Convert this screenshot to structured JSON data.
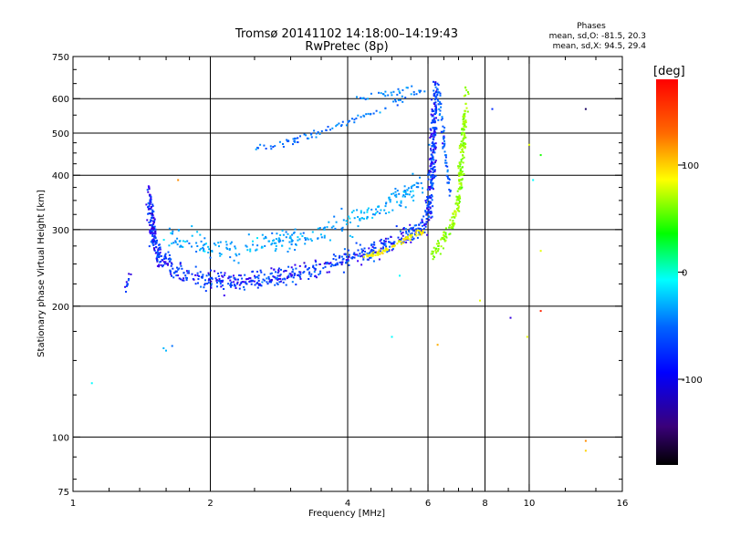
{
  "header": {
    "title": "Tromsø 20141102 14:18:00–14:19:43",
    "subtitle": "RwPretec (8p)"
  },
  "stats": {
    "heading": "Phases",
    "line_o": "mean, sd,O: -81.5, 20.3",
    "line_x": "mean, sd,X:  94.5, 29.4"
  },
  "colorbar": {
    "label": "[deg]",
    "range": [
      -180,
      180
    ],
    "ticks": [
      {
        "value": 100,
        "label": "100"
      },
      {
        "value": 0,
        "label": "0"
      },
      {
        "value": -100,
        "label": "-100"
      }
    ]
  },
  "chart_data": {
    "type": "scatter",
    "title": "Tromsø 20141102 14:18:00–14:19:43",
    "subtitle": "RwPretec (8p)",
    "xlabel": "Frequency [MHz]",
    "ylabel": "Stationary phase Virtual Height [km]",
    "x_scale": "log",
    "y_scale": "log",
    "xlim": [
      1,
      16
    ],
    "ylim": [
      75,
      750
    ],
    "x_ticks": [
      {
        "value": 1,
        "label": "1"
      },
      {
        "value": 2,
        "label": "2"
      },
      {
        "value": 4,
        "label": "4"
      },
      {
        "value": 6,
        "label": "6"
      },
      {
        "value": 8,
        "label": "8"
      },
      {
        "value": 10,
        "label": "10"
      },
      {
        "value": 16,
        "label": "16"
      }
    ],
    "y_ticks": [
      {
        "value": 75,
        "label": "75"
      },
      {
        "value": 100,
        "label": "100"
      },
      {
        "value": 200,
        "label": "200"
      },
      {
        "value": 300,
        "label": "300"
      },
      {
        "value": 400,
        "label": "400"
      },
      {
        "value": 500,
        "label": "500"
      },
      {
        "value": 600,
        "label": "600"
      },
      {
        "value": 750,
        "label": "750"
      }
    ],
    "x_grid": [
      2,
      4,
      6,
      8,
      10
    ],
    "y_grid": [
      100,
      200,
      300,
      400,
      500,
      600
    ],
    "color_variable": "phase [deg]",
    "clusters": [
      {
        "kind": "curve",
        "points": [
          [
            1.47,
            340
          ],
          [
            1.5,
            285
          ],
          [
            1.55,
            260
          ],
          [
            1.65,
            245
          ],
          [
            1.8,
            235
          ],
          [
            2.0,
            228
          ],
          [
            2.3,
            228
          ],
          [
            2.7,
            232
          ],
          [
            3.2,
            240
          ],
          [
            3.7,
            250
          ],
          [
            4.2,
            262
          ],
          [
            4.8,
            275
          ],
          [
            5.3,
            288
          ],
          [
            5.8,
            300
          ],
          [
            6.0,
            320
          ],
          [
            6.1,
            380
          ],
          [
            6.15,
            460
          ],
          [
            6.2,
            560
          ],
          [
            6.25,
            640
          ]
        ],
        "phase": -95,
        "spread": 0.05,
        "count": 900
      },
      {
        "kind": "curve",
        "points": [
          [
            1.6,
            290
          ],
          [
            1.9,
            275
          ],
          [
            2.3,
            272
          ],
          [
            2.8,
            282
          ],
          [
            3.3,
            292
          ],
          [
            3.8,
            305
          ],
          [
            4.3,
            320
          ],
          [
            4.8,
            340
          ],
          [
            5.3,
            360
          ],
          [
            5.8,
            385
          ]
        ],
        "phase": -65,
        "spread": 0.06,
        "count": 280
      },
      {
        "kind": "curve",
        "points": [
          [
            1.47,
            375
          ],
          [
            1.5,
            310
          ],
          [
            1.52,
            270
          ],
          [
            1.55,
            250
          ]
        ],
        "phase": -100,
        "spread": 0.03,
        "count": 60
      },
      {
        "kind": "curve",
        "points": [
          [
            4.3,
            258
          ],
          [
            4.8,
            268
          ],
          [
            5.2,
            280
          ],
          [
            5.6,
            292
          ],
          [
            5.9,
            300
          ]
        ],
        "phase": 110,
        "spread": 0.015,
        "count": 80
      },
      {
        "kind": "curve",
        "points": [
          [
            6.1,
            260
          ],
          [
            6.4,
            280
          ],
          [
            6.8,
            310
          ],
          [
            7.0,
            350
          ],
          [
            7.1,
            420
          ],
          [
            7.2,
            520
          ],
          [
            7.3,
            630
          ]
        ],
        "phase": 75,
        "spread": 0.035,
        "count": 230
      },
      {
        "kind": "curve",
        "points": [
          [
            6.3,
            640
          ],
          [
            6.4,
            560
          ],
          [
            6.5,
            480
          ],
          [
            6.6,
            420
          ],
          [
            6.7,
            360
          ]
        ],
        "phase": -85,
        "spread": 0.025,
        "count": 60
      },
      {
        "kind": "curve",
        "points": [
          [
            2.5,
            460
          ],
          [
            3.0,
            478
          ],
          [
            3.5,
            505
          ],
          [
            4.0,
            528
          ],
          [
            4.5,
            555
          ],
          [
            5.0,
            582
          ],
          [
            5.5,
            610
          ],
          [
            5.9,
            632
          ]
        ],
        "phase": -80,
        "spread": 0.02,
        "count": 90
      },
      {
        "kind": "curve",
        "points": [
          [
            4.2,
            600
          ],
          [
            5.0,
            620
          ],
          [
            5.5,
            640
          ]
        ],
        "phase": -75,
        "spread": 0.02,
        "count": 25
      },
      {
        "kind": "curve",
        "points": [
          [
            1.3,
            215
          ],
          [
            1.32,
            228
          ],
          [
            1.34,
            240
          ]
        ],
        "phase": -95,
        "spread": 0.02,
        "count": 12
      }
    ],
    "isolated_points": [
      {
        "x": 1.1,
        "y": 133,
        "phase": -40
      },
      {
        "x": 1.58,
        "y": 160,
        "phase": -60
      },
      {
        "x": 1.6,
        "y": 158,
        "phase": -60
      },
      {
        "x": 1.65,
        "y": 162,
        "phase": -80
      },
      {
        "x": 1.7,
        "y": 390,
        "phase": 140
      },
      {
        "x": 5.0,
        "y": 170,
        "phase": -40
      },
      {
        "x": 5.2,
        "y": 235,
        "phase": -40
      },
      {
        "x": 6.3,
        "y": 163,
        "phase": 130
      },
      {
        "x": 7.8,
        "y": 206,
        "phase": 100
      },
      {
        "x": 8.3,
        "y": 568,
        "phase": -100
      },
      {
        "x": 9.1,
        "y": 188,
        "phase": -110
      },
      {
        "x": 9.9,
        "y": 170,
        "phase": 100
      },
      {
        "x": 10.2,
        "y": 390,
        "phase": -40
      },
      {
        "x": 10.6,
        "y": 195,
        "phase": 170
      },
      {
        "x": 10.6,
        "y": 268,
        "phase": 100
      },
      {
        "x": 10.6,
        "y": 445,
        "phase": 40
      },
      {
        "x": 10.0,
        "y": 470,
        "phase": 100
      },
      {
        "x": 13.3,
        "y": 568,
        "phase": -150
      },
      {
        "x": 13.3,
        "y": 98,
        "phase": 140
      },
      {
        "x": 13.3,
        "y": 93,
        "phase": 120
      }
    ]
  }
}
